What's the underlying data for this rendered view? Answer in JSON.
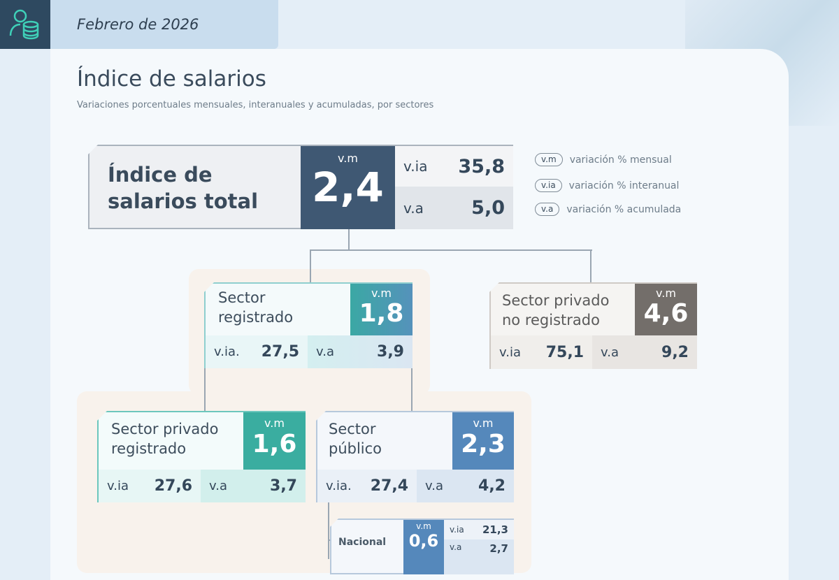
{
  "header": {
    "date": "Febrero de 2026",
    "icon": "people-coins-icon"
  },
  "title": "Índice de salarios",
  "subtitle": "Variaciones porcentuales mensuales, interanuales y acumuladas, por sectores",
  "legend": [
    {
      "key": "v.m",
      "label": "variación % mensual"
    },
    {
      "key": "v.ia",
      "label": "variación % interanual"
    },
    {
      "key": "v.a",
      "label": "variación % acumulada"
    }
  ],
  "total": {
    "label1": "Índice de",
    "label2": "salarios total",
    "vm_key": "v.m",
    "vm": "2,4",
    "via_key": "v.ia",
    "via": "35,8",
    "va_key": "v.a",
    "va": "5,0",
    "color": "#3f5873"
  },
  "registrado": {
    "label1": "Sector",
    "label2": "registrado",
    "vm_key": "v.m",
    "vm": "1,8",
    "via_key": "v.ia.",
    "via": "27,5",
    "va_key": "v.a",
    "va": "3,9",
    "color": "#4d9ab0"
  },
  "no_registrado": {
    "label1": "Sector privado",
    "label2": "no registrado",
    "vm_key": "v.m",
    "vm": "4,6",
    "via_key": "v.ia",
    "via": "75,1",
    "va_key": "v.a",
    "va": "9,2",
    "color": "#736e6a"
  },
  "privado_registrado": {
    "label1": "Sector privado",
    "label2": "registrado",
    "vm_key": "v.m",
    "vm": "1,6",
    "via_key": "v.ia",
    "via": "27,6",
    "va_key": "v.a",
    "va": "3,7",
    "color": "#3aada0"
  },
  "publico": {
    "label1": "Sector",
    "label2": "público",
    "vm_key": "v.m",
    "vm": "2,3",
    "via_key": "v.ia.",
    "via": "27,4",
    "va_key": "v.a",
    "va": "4,2",
    "color": "#5588bb"
  },
  "nacional": {
    "label": "Nacional",
    "vm_key": "v.m",
    "vm": "0,6",
    "via_key": "v.ia",
    "via": "21,3",
    "va_key": "v.a",
    "va": "2,7",
    "color": "#5588bb"
  }
}
